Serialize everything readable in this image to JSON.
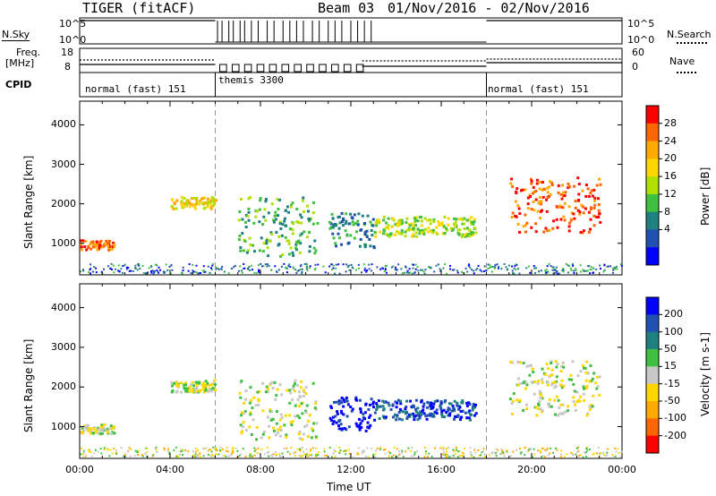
{
  "header": {
    "title": "TIGER (fitACF)",
    "beam": "Beam 03",
    "date_range": "01/Nov/2016 - 02/Nov/2016"
  },
  "status_panels": {
    "nsky_label": "N.Sky",
    "nsky_ticks": [
      "10^5",
      "10^0"
    ],
    "nsearch_label": "N.Search",
    "nsearch_ticks": [
      "10^5",
      "10^0"
    ],
    "freq_label": "Freq.",
    "freq_unit": "[MHz]",
    "freq_ticks": [
      "18",
      "8"
    ],
    "nave_label": "Nave",
    "nave_ticks": [
      "60",
      "0"
    ],
    "cpid_label": "CPID",
    "modes": [
      {
        "label": "normal (fast) 151",
        "start_hour": 0,
        "end_hour": 6
      },
      {
        "label": "themis 3300",
        "start_hour": 6,
        "end_hour": 18
      },
      {
        "label": "normal (fast) 151",
        "start_hour": 18,
        "end_hour": 24
      }
    ]
  },
  "x_axis": {
    "label": "Time UT",
    "ticks": [
      "00:00",
      "04:00",
      "08:00",
      "12:00",
      "16:00",
      "20:00",
      "00:00"
    ]
  },
  "chart_data": [
    {
      "type": "heatmap",
      "ylabel": "Slant Range [km]",
      "yticks": [
        "4000",
        "3000",
        "2000",
        "1000"
      ],
      "ylim": [
        200,
        4600
      ],
      "xlim_hours": [
        0,
        24
      ],
      "colorbar_label": "Power [dB]",
      "colorbar_ticks": [
        "28",
        "24",
        "20",
        "16",
        "12",
        "8",
        "4"
      ],
      "colorbar_colors": [
        "#ff0000",
        "#ff6600",
        "#ffaa00",
        "#ffd700",
        "#b0e000",
        "#40c040",
        "#208080",
        "#2050b0",
        "#0000ff"
      ],
      "features": [
        {
          "t": [
            0.0,
            1.5
          ],
          "r": [
            850,
            1100
          ],
          "level": 1
        },
        {
          "t": [
            4.0,
            6.0
          ],
          "r": [
            1900,
            2200
          ],
          "level": 3
        },
        {
          "t": [
            7.0,
            10.5
          ],
          "r": [
            700,
            2200
          ],
          "level": 5
        },
        {
          "t": [
            11.0,
            13.0
          ],
          "r": [
            900,
            1800
          ],
          "level": 6
        },
        {
          "t": [
            13.0,
            17.5
          ],
          "r": [
            1200,
            1700
          ],
          "level": 4
        },
        {
          "t": [
            19.0,
            23.0
          ],
          "r": [
            1300,
            2700
          ],
          "level": 1
        }
      ]
    },
    {
      "type": "heatmap",
      "ylabel": "Slant Range [km]",
      "yticks": [
        "4000",
        "3000",
        "2000",
        "1000"
      ],
      "ylim": [
        200,
        4600
      ],
      "xlim_hours": [
        0,
        24
      ],
      "colorbar_label": "Velocity [m s-1]",
      "colorbar_ticks": [
        "200",
        "100",
        "50",
        "15",
        "-15",
        "-50",
        "-100",
        "-200"
      ],
      "colorbar_colors": [
        "#0000ff",
        "#2050b0",
        "#208080",
        "#40c040",
        "#c8c8c8",
        "#ffd700",
        "#ffaa00",
        "#ff6600",
        "#ff0000"
      ],
      "features": [
        {
          "t": [
            0.0,
            1.5
          ],
          "r": [
            850,
            1100
          ],
          "level": 4
        },
        {
          "t": [
            4.0,
            6.0
          ],
          "r": [
            1900,
            2200
          ],
          "level": 4
        },
        {
          "t": [
            7.0,
            10.5
          ],
          "r": [
            700,
            2200
          ],
          "level": 4
        },
        {
          "t": [
            11.0,
            13.0
          ],
          "r": [
            900,
            1800
          ],
          "level": 0
        },
        {
          "t": [
            13.0,
            17.5
          ],
          "r": [
            1200,
            1700
          ],
          "level": 1
        },
        {
          "t": [
            19.0,
            23.0
          ],
          "r": [
            1300,
            2700
          ],
          "level": 4
        }
      ]
    }
  ]
}
